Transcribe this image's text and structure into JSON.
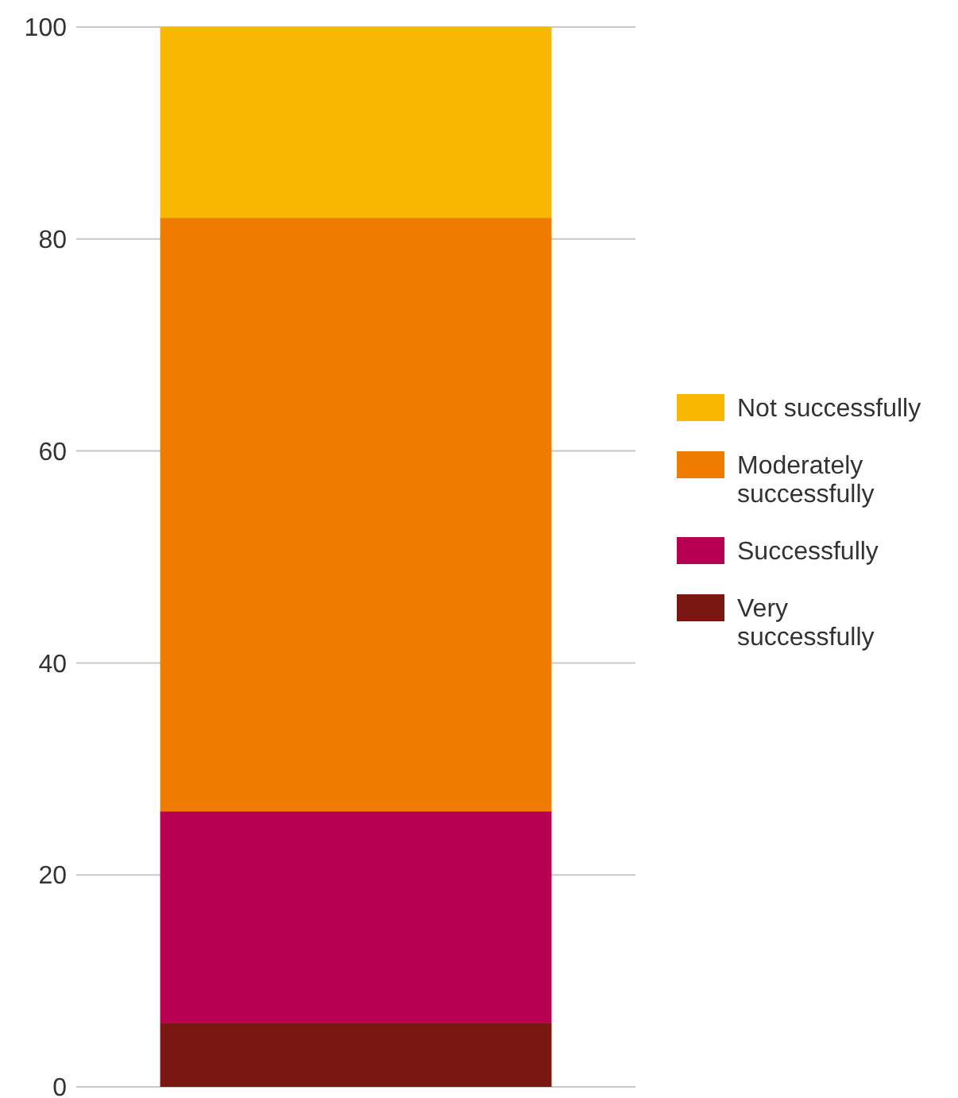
{
  "chart_data": {
    "type": "bar",
    "stacked": true,
    "categories": [
      null
    ],
    "series": [
      {
        "name": "Very successfully",
        "color": "#7a1712",
        "values": [
          6
        ]
      },
      {
        "name": "Successfully",
        "color": "#b80053",
        "values": [
          20
        ]
      },
      {
        "name": "Moderately successfully",
        "color": "#ee7c00",
        "values": [
          56
        ]
      },
      {
        "name": "Not successfully",
        "color": "#f9b800",
        "values": [
          18
        ]
      }
    ],
    "ylim": [
      0,
      100
    ],
    "yticks": [
      0,
      20,
      40,
      60,
      80,
      100
    ],
    "grid": "y",
    "legend": "right"
  }
}
